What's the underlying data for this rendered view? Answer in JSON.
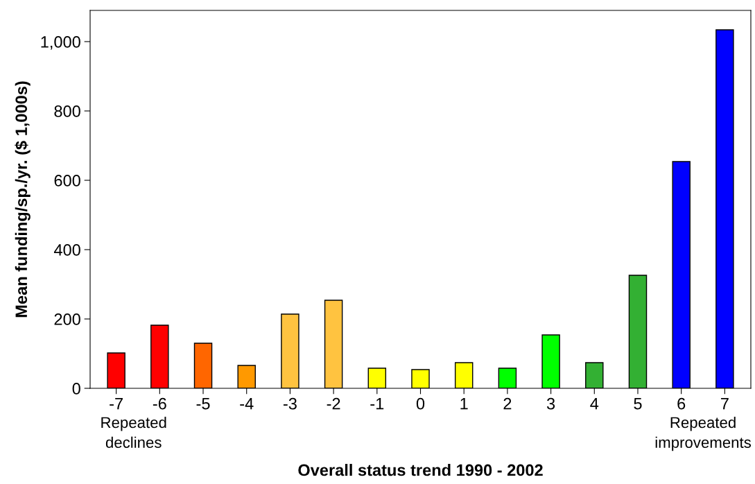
{
  "chart_data": {
    "type": "bar",
    "xlabel": "Overall status trend 1990 - 2002",
    "ylabel": "Mean funding/sp./yr. ($ 1,000s)",
    "categories": [
      "-7",
      "-6",
      "-5",
      "-4",
      "-3",
      "-2",
      "-1",
      "0",
      "1",
      "2",
      "3",
      "4",
      "5",
      "6",
      "7"
    ],
    "values": [
      102,
      182,
      130,
      66,
      214,
      254,
      58,
      54,
      74,
      58,
      154,
      74,
      326,
      654,
      1034
    ],
    "colors": [
      "#ff0000",
      "#ff0000",
      "#ff6600",
      "#ff9900",
      "#ffc340",
      "#ffc340",
      "#ffff00",
      "#ffff00",
      "#ffff00",
      "#00ff00",
      "#00ff00",
      "#33b033",
      "#33b033",
      "#0000ff",
      "#0000ff"
    ],
    "ylim": [
      0,
      1090
    ],
    "yticks": [
      0,
      200,
      400,
      600,
      800,
      {
        "value": 1000,
        "label": "1,000"
      }
    ],
    "annotations": [
      "Repeated\ndeclines",
      "Repeated\nimprovements"
    ],
    "grid": false,
    "legend": false
  }
}
